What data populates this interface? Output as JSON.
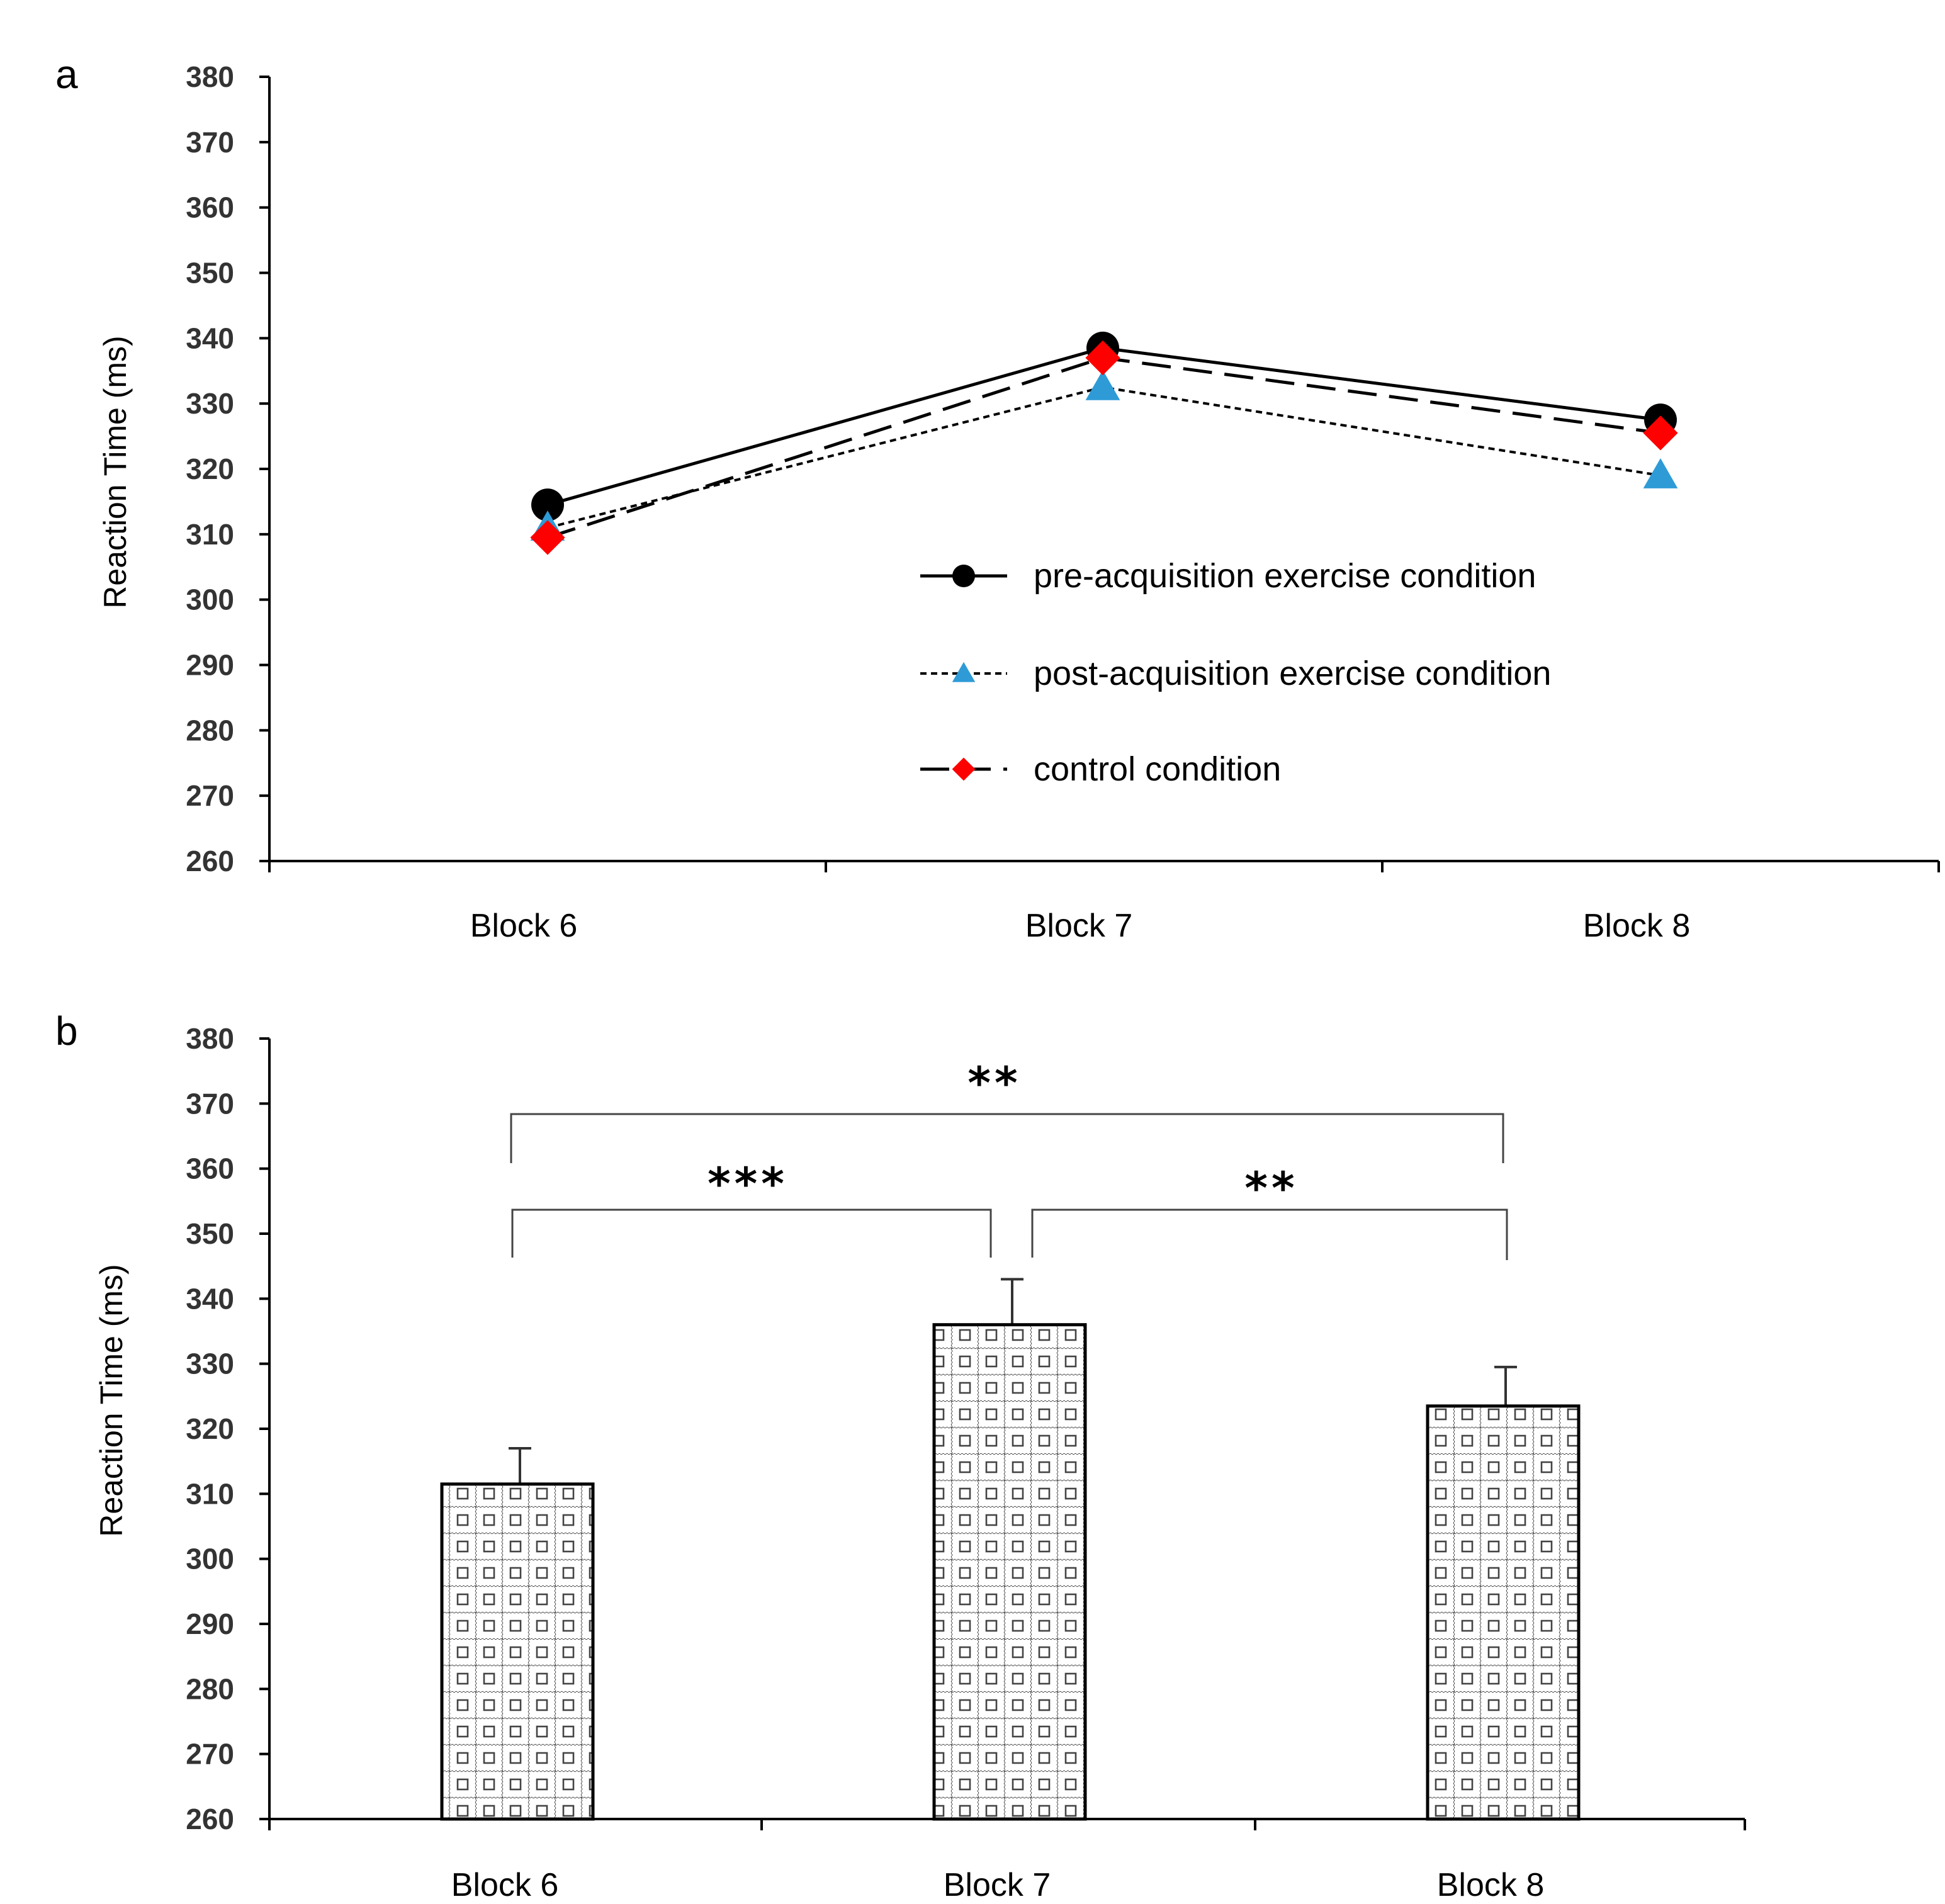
{
  "panels": {
    "a": {
      "letter": "a"
    },
    "b": {
      "letter": "b"
    }
  },
  "chart_data": [
    {
      "panel": "a",
      "type": "line",
      "title": "",
      "xlabel": "",
      "ylabel": "Reaction Time (ms)",
      "ylim": [
        260,
        380
      ],
      "yticks": [
        260,
        270,
        280,
        290,
        300,
        310,
        320,
        330,
        340,
        350,
        360,
        370,
        380
      ],
      "categories": [
        "Block 6",
        "Block 7",
        "Block 8"
      ],
      "legend_position": "center-right",
      "series": [
        {
          "name": "pre-acquisition exercise condition",
          "values": [
            314.5,
            338.5,
            327.5
          ],
          "marker": "circle",
          "line": "solid",
          "color": "#000000"
        },
        {
          "name": "post-acquisition exercise condition",
          "values": [
            311,
            332.5,
            319
          ],
          "marker": "triangle",
          "line": "dotted",
          "color": "#2e9bd6"
        },
        {
          "name": "control condition",
          "values": [
            309.5,
            337,
            325.5
          ],
          "marker": "diamond",
          "line": "dashed",
          "color": "#ff0000"
        }
      ]
    },
    {
      "panel": "b",
      "type": "bar",
      "title": "",
      "xlabel": "",
      "ylabel": "Reaction Time (ms)",
      "ylim": [
        260,
        380
      ],
      "yticks": [
        260,
        270,
        280,
        290,
        300,
        310,
        320,
        330,
        340,
        350,
        360,
        370,
        380
      ],
      "categories": [
        "Block 6",
        "Block 7",
        "Block 8"
      ],
      "values": [
        311.5,
        336,
        323.5
      ],
      "error_upper": [
        317,
        343,
        329.5
      ],
      "significance": [
        {
          "from": "Block 6",
          "to": "Block 7",
          "label": "***"
        },
        {
          "from": "Block 7",
          "to": "Block 8",
          "label": "**"
        },
        {
          "from": "Block 6",
          "to": "Block 8",
          "label": "**"
        }
      ]
    }
  ]
}
